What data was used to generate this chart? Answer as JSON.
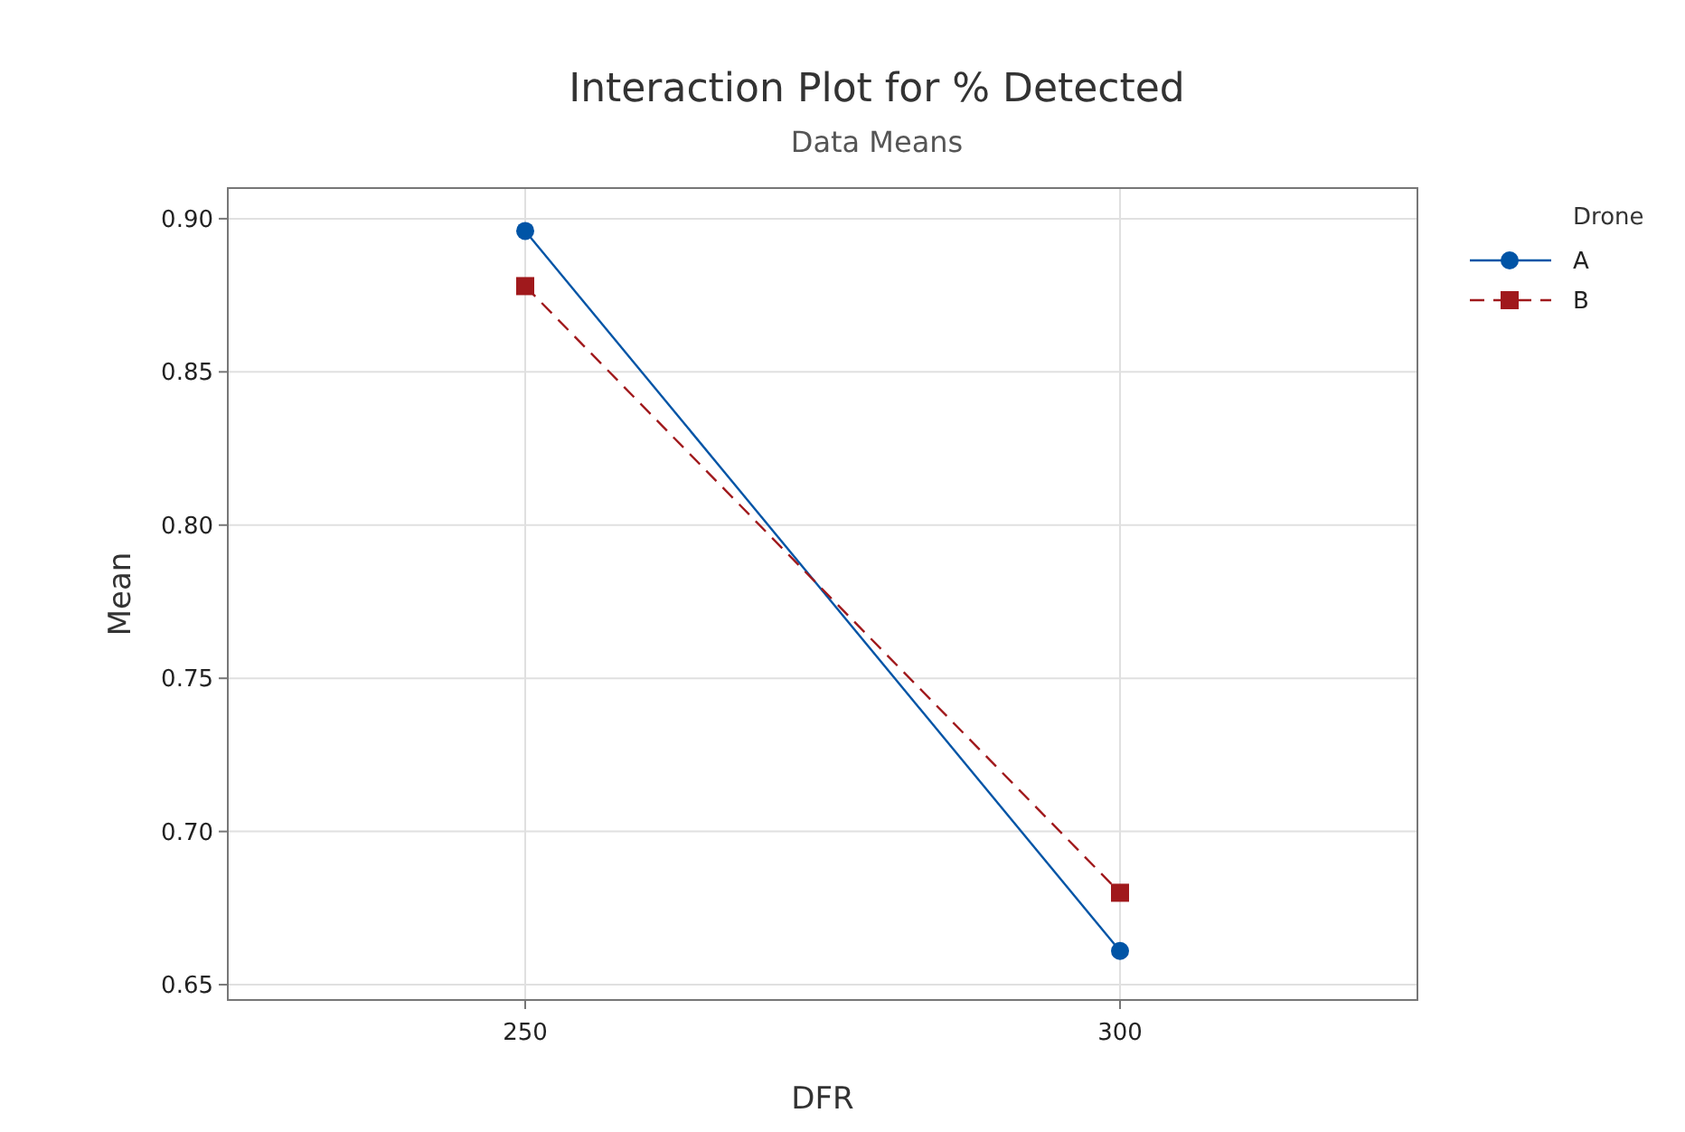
{
  "chart_data": {
    "type": "line",
    "title": "Interaction Plot for % Detected",
    "subtitle": "Data Means",
    "xlabel": "DFR",
    "ylabel": "Mean",
    "legend_title": "Drone",
    "categories": [
      "250",
      "300"
    ],
    "series": [
      {
        "name": "A",
        "color": "#0054a6",
        "values": [
          0.896,
          0.661
        ],
        "marker": "circle",
        "line_style": "solid"
      },
      {
        "name": "B",
        "color": "#a0191c",
        "values": [
          0.878,
          0.68
        ],
        "marker": "square",
        "line_style": "dashed"
      }
    ],
    "ylim": [
      0.645,
      0.91
    ],
    "yticks": [
      {
        "value": 0.65,
        "label": "0.65"
      },
      {
        "value": 0.7,
        "label": "0.70"
      },
      {
        "value": 0.75,
        "label": "0.75"
      },
      {
        "value": 0.8,
        "label": "0.80"
      },
      {
        "value": 0.85,
        "label": "0.85"
      },
      {
        "value": 0.9,
        "label": "0.90"
      }
    ],
    "grid": true,
    "legend": "top right"
  }
}
